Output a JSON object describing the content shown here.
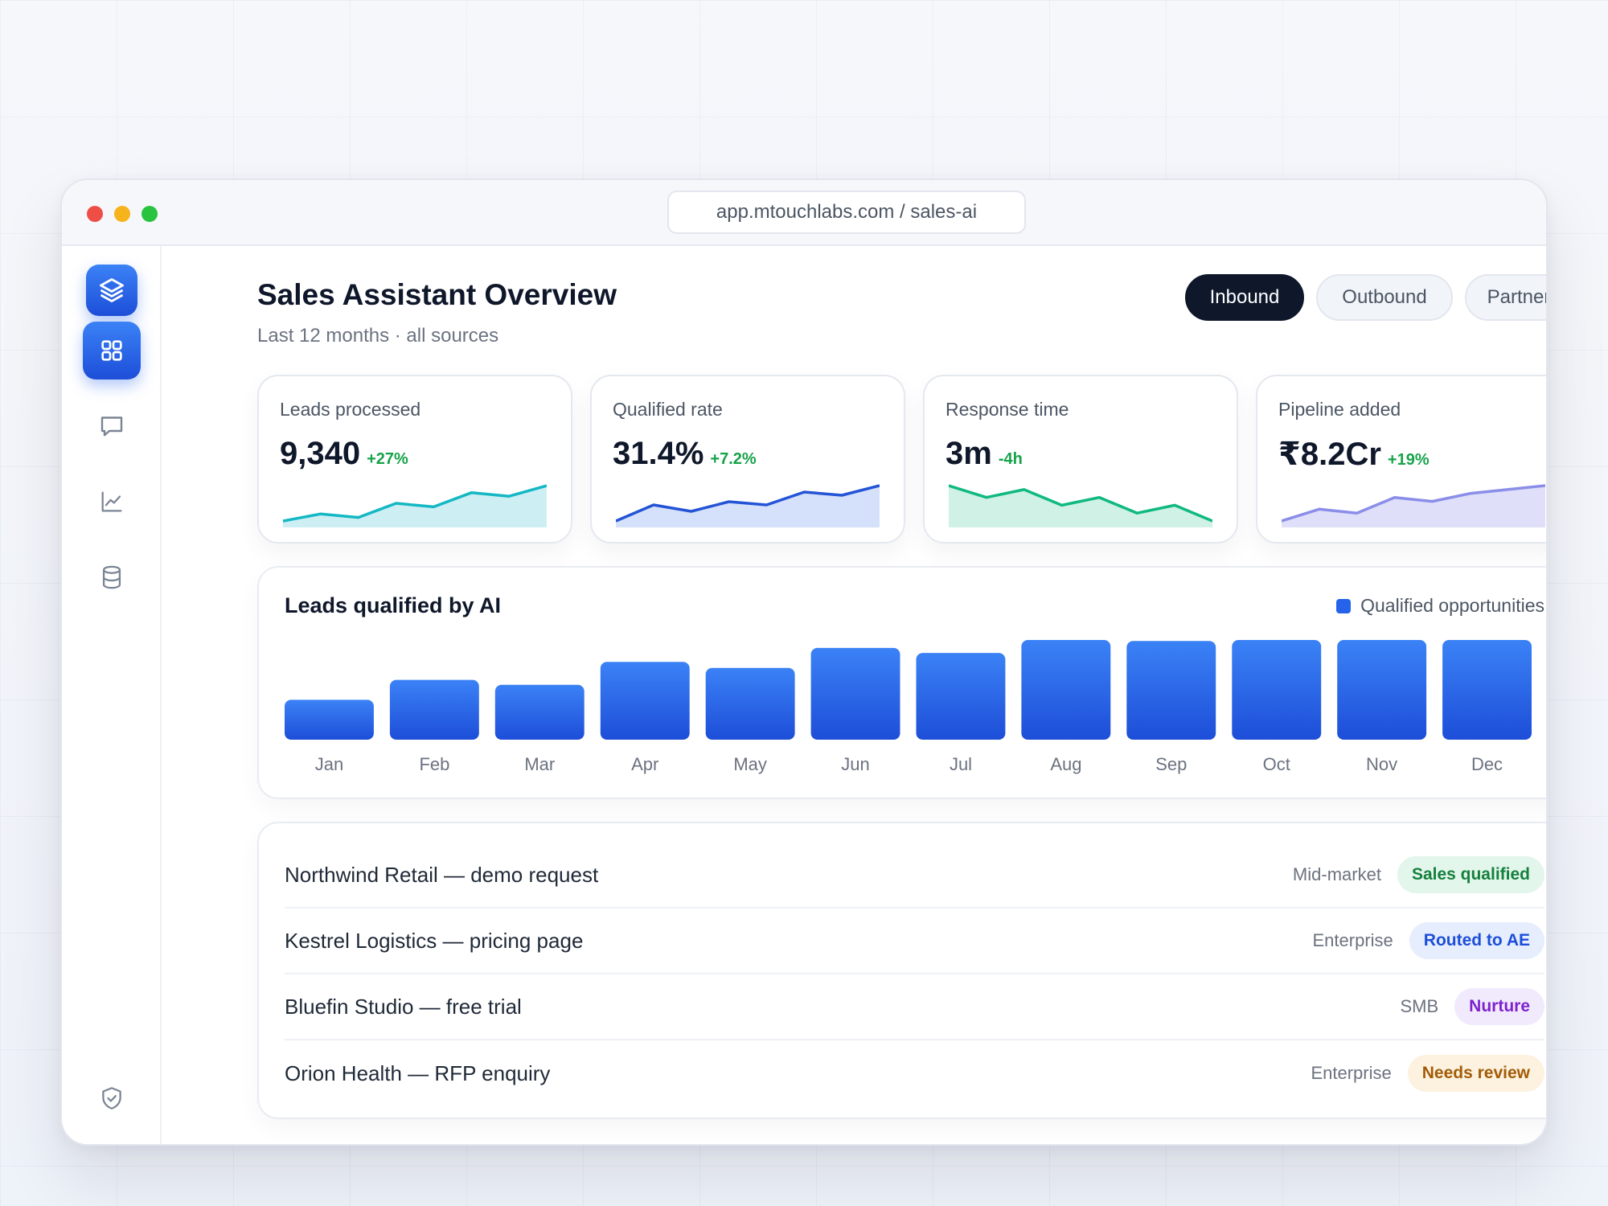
{
  "browser": {
    "url": "app.mtouchlabs.com / sales-ai"
  },
  "sidebar": {
    "logo_icon": "stack-layers-icon",
    "items": [
      {
        "icon": "grid-icon",
        "active": true
      },
      {
        "icon": "chat-icon",
        "active": false
      },
      {
        "icon": "line-chart-icon",
        "active": false
      },
      {
        "icon": "database-icon",
        "active": false
      }
    ],
    "footer_icon": "shield-check-icon"
  },
  "header": {
    "title": "Sales Assistant Overview",
    "subtitle": "Last 12 months · all sources",
    "tabs": [
      {
        "label": "Inbound",
        "active": true
      },
      {
        "label": "Outbound",
        "active": false
      },
      {
        "label": "Partner",
        "active": false
      }
    ]
  },
  "kpis": [
    {
      "label": "Leads processed",
      "value": "9,340",
      "delta": "+27%",
      "color": "#14b8c4",
      "fill": "#cdeff4",
      "trend": [
        2,
        4,
        3,
        7,
        6,
        10,
        9,
        12
      ]
    },
    {
      "label": "Qualified rate",
      "value": "31.4%",
      "delta": "+7.2%",
      "color": "#2454d6",
      "fill": "#d5e0fa",
      "trend": [
        1,
        6,
        4,
        7,
        6,
        10,
        9,
        12
      ]
    },
    {
      "label": "Response time",
      "value": "3m",
      "delta": "-4h",
      "color": "#10b981",
      "fill": "#d0f1e5",
      "trend": [
        12,
        9,
        11,
        7,
        9,
        5,
        7,
        3
      ]
    },
    {
      "label": "Pipeline added",
      "value": "₹8.2Cr",
      "delta": "+19%",
      "color": "#8b8ee8",
      "fill": "#dfdff9",
      "trend": [
        3,
        6,
        5,
        9,
        8,
        10,
        11,
        12
      ]
    }
  ],
  "chart_data": {
    "type": "bar",
    "title": "Leads qualified by AI",
    "legend": "Qualified opportunities",
    "legend_position": "top-right",
    "grid": false,
    "color": "#2563eb",
    "categories": [
      "Jan",
      "Feb",
      "Mar",
      "Apr",
      "May",
      "Jun",
      "Jul",
      "Aug",
      "Sep",
      "Oct",
      "Nov",
      "Dec"
    ],
    "values": [
      40,
      60,
      55,
      78,
      72,
      92,
      87,
      100,
      99,
      100,
      100,
      100
    ],
    "ylim": [
      0,
      100
    ]
  },
  "leads": [
    {
      "title": "Northwind Retail — demo request",
      "segment": "Mid-market",
      "status": "Sales qualified",
      "status_bg": "#e3f6ec",
      "status_fg": "#15803d"
    },
    {
      "title": "Kestrel Logistics — pricing page",
      "segment": "Enterprise",
      "status": "Routed to AE",
      "status_bg": "#e6eefd",
      "status_fg": "#1d4ed8"
    },
    {
      "title": "Bluefin Studio — free trial",
      "segment": "SMB",
      "status": "Nurture",
      "status_bg": "#f1eafd",
      "status_fg": "#7e22ce"
    },
    {
      "title": "Orion Health — RFP enquiry",
      "segment": "Enterprise",
      "status": "Needs review",
      "status_bg": "#fdf1df",
      "status_fg": "#a15c07"
    }
  ]
}
